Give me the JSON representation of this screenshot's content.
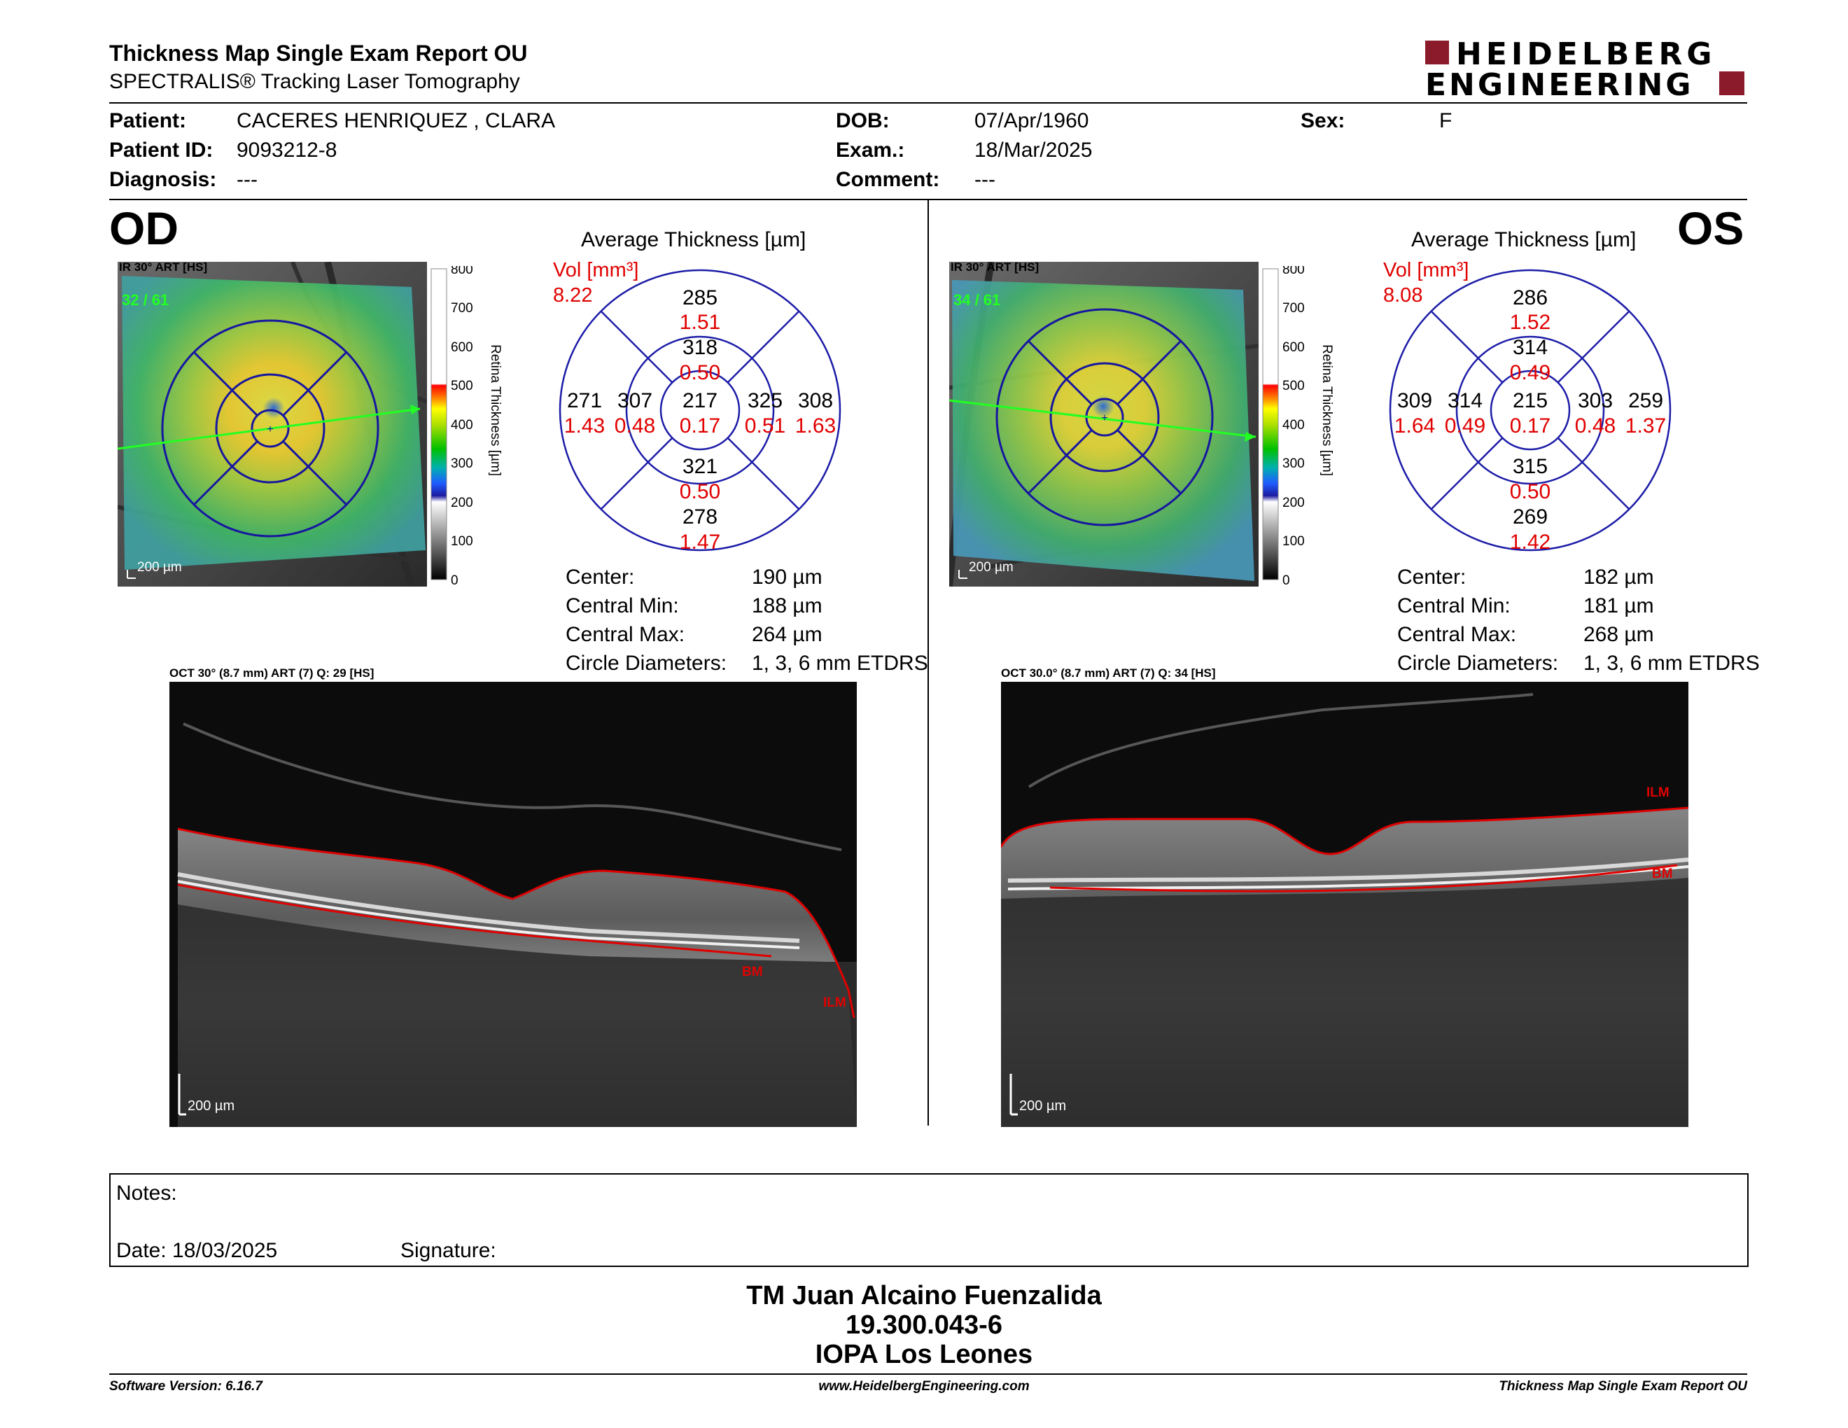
{
  "header": {
    "title": "Thickness Map Single Exam Report OU",
    "subtitle": "SPECTRALIS® Tracking Laser Tomography",
    "brand_line1": "HEIDELBERG",
    "brand_line2": "ENGINEERING",
    "brand_color": "#8b1a2b"
  },
  "patient": {
    "patient_label": "Patient:",
    "patient_value": "CACERES HENRIQUEZ , CLARA",
    "id_label": "Patient ID:",
    "id_value": "9093212-8",
    "diagnosis_label": "Diagnosis:",
    "diagnosis_value": "---",
    "dob_label": "DOB:",
    "dob_value": "07/Apr/1960",
    "exam_label": "Exam.:",
    "exam_value": "18/Mar/2025",
    "comment_label": "Comment:",
    "comment_value": "---",
    "sex_label": "Sex:",
    "sex_value": "F"
  },
  "colorbar": {
    "ticks": [
      "800",
      "700",
      "600",
      "500",
      "400",
      "300",
      "200",
      "100",
      "0"
    ],
    "label": "Retina Thickness [µm]"
  },
  "od": {
    "eye": "OD",
    "ir_label": "IR 30° ART [HS]",
    "ir_overlay": "32 / 61",
    "ir_scale": "200 µm",
    "avg_title": "Average Thickness [µm]",
    "vol_label": "Vol [mm³]",
    "vol_total": "8.22",
    "sectors": {
      "center": {
        "t": "217",
        "v": "0.17"
      },
      "inner_sup": {
        "t": "318",
        "v": "0.50"
      },
      "inner_inf": {
        "t": "321",
        "v": "0.50"
      },
      "inner_left": {
        "t": "307",
        "v": "0.48"
      },
      "inner_right": {
        "t": "325",
        "v": "0.51"
      },
      "outer_sup": {
        "t": "285",
        "v": "1.51"
      },
      "outer_inf": {
        "t": "278",
        "v": "1.47"
      },
      "outer_left": {
        "t": "271",
        "v": "1.43"
      },
      "outer_right": {
        "t": "308",
        "v": "1.63"
      }
    },
    "stats": [
      {
        "label": "Center:",
        "value": "190 µm"
      },
      {
        "label": "Central Min:",
        "value": "188 µm"
      },
      {
        "label": "Central Max:",
        "value": "264 µm"
      },
      {
        "label": "Circle Diameters:",
        "value": "1, 3, 6 mm ETDRS"
      }
    ],
    "oct_label": "OCT 30° (8.7 mm) ART (7) Q: 29 [HS]",
    "oct_scale": "200 µm",
    "ilm": "ILM",
    "bm": "BM"
  },
  "os": {
    "eye": "OS",
    "ir_label": "IR 30° ART [HS]",
    "ir_overlay": "34 / 61",
    "ir_scale": "200 µm",
    "avg_title": "Average Thickness [µm]",
    "vol_label": "Vol [mm³]",
    "vol_total": "8.08",
    "sectors": {
      "center": {
        "t": "215",
        "v": "0.17"
      },
      "inner_sup": {
        "t": "314",
        "v": "0.49"
      },
      "inner_inf": {
        "t": "315",
        "v": "0.50"
      },
      "inner_left": {
        "t": "314",
        "v": "0.49"
      },
      "inner_right": {
        "t": "303",
        "v": "0.48"
      },
      "outer_sup": {
        "t": "286",
        "v": "1.52"
      },
      "outer_inf": {
        "t": "269",
        "v": "1.42"
      },
      "outer_left": {
        "t": "309",
        "v": "1.64"
      },
      "outer_right": {
        "t": "259",
        "v": "1.37"
      }
    },
    "stats": [
      {
        "label": "Center:",
        "value": "182 µm"
      },
      {
        "label": "Central Min:",
        "value": "181 µm"
      },
      {
        "label": "Central Max:",
        "value": "268 µm"
      },
      {
        "label": "Circle Diameters:",
        "value": "1, 3, 6 mm ETDRS"
      }
    ],
    "oct_label": "OCT 30.0° (8.7 mm) ART (7) Q: 34 [HS]",
    "oct_scale": "200 µm",
    "ilm": "ILM",
    "bm": "BM"
  },
  "notes": {
    "notes_label": "Notes:",
    "date_label": "Date: 18/03/2025",
    "signature_label": "Signature:"
  },
  "signer": {
    "name": "TM Juan Alcaino Fuenzalida",
    "id": "19.300.043-6",
    "org": "IOPA Los Leones"
  },
  "footer": {
    "software": "Software Version: 6.16.7",
    "website": "www.HeidelbergEngineering.com",
    "report": "Thickness Map Single Exam Report OU"
  }
}
